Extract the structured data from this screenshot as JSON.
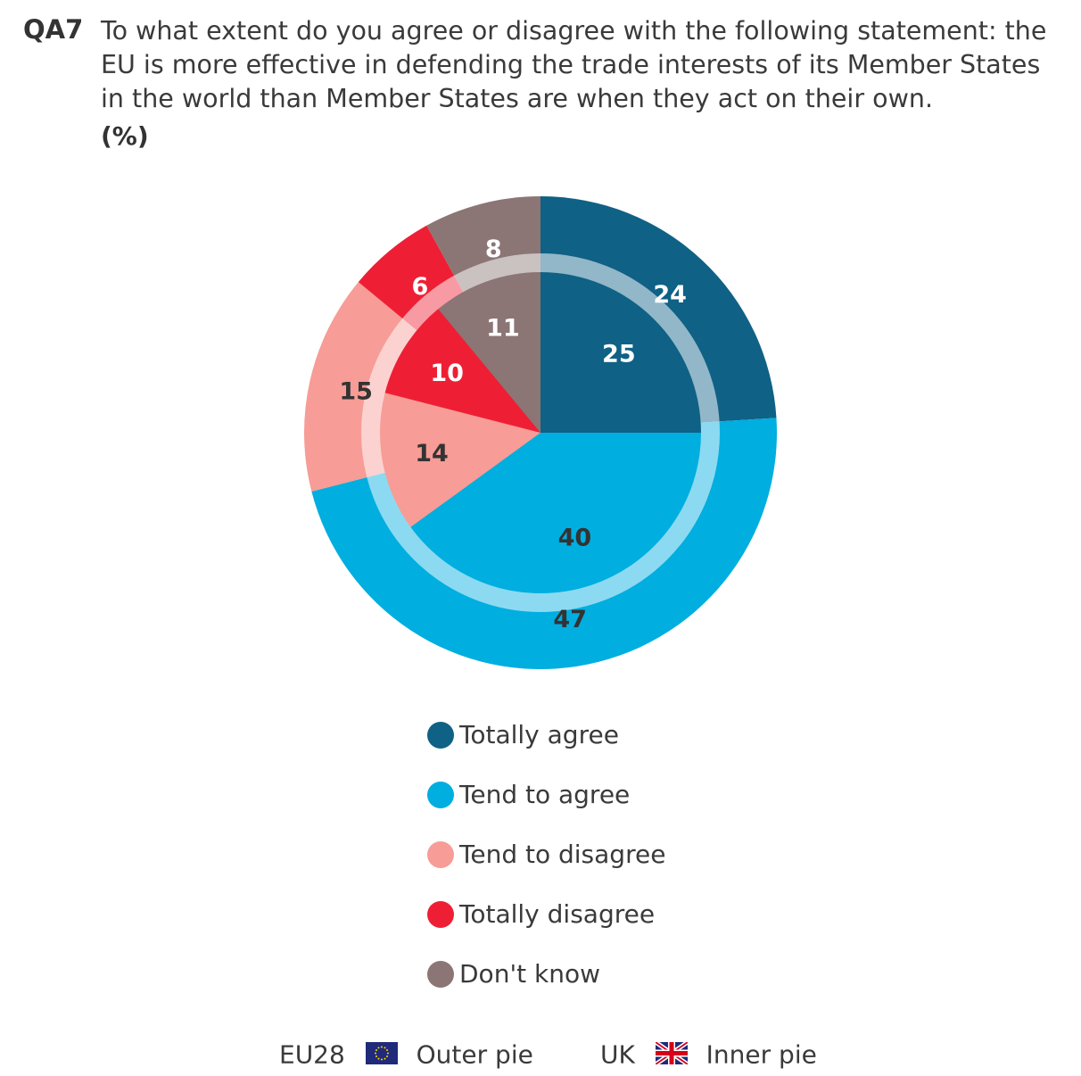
{
  "header": {
    "question_id": "QA7",
    "question_text": "To what extent do you agree or disagree with the following statement: the EU is more effective in defending the trade interests of its Member States in the world than Member States are when they act on their own.",
    "unit": "(%)"
  },
  "chart_data": {
    "type": "pie",
    "categories": [
      "Totally agree",
      "Tend to agree",
      "Tend to disagree",
      "Totally disagree",
      "Don't know"
    ],
    "colors": [
      "#0f6185",
      "#00aee0",
      "#f79c96",
      "#ee1f34",
      "#8b7675"
    ],
    "label_colors": [
      "#ffffff",
      "#333333",
      "#333333",
      "#ffffff",
      "#ffffff"
    ],
    "series": [
      {
        "name": "EU28",
        "ring": "outer",
        "values": [
          24,
          47,
          15,
          6,
          8
        ]
      },
      {
        "name": "UK",
        "ring": "inner",
        "values": [
          25,
          40,
          14,
          10,
          11
        ]
      }
    ]
  },
  "legend": {
    "items": [
      {
        "label": "Totally agree",
        "color": "#0f6185"
      },
      {
        "label": "Tend to agree",
        "color": "#00aee0"
      },
      {
        "label": "Tend to disagree",
        "color": "#f79c96"
      },
      {
        "label": "Totally disagree",
        "color": "#ee1f34"
      },
      {
        "label": "Don't know",
        "color": "#8b7675"
      }
    ]
  },
  "footer": {
    "outer_label": "EU28",
    "outer_desc": "Outer pie",
    "outer_flag_icon": "eu-flag-icon",
    "inner_label": "UK",
    "inner_desc": "Inner pie",
    "inner_flag_icon": "uk-flag-icon"
  }
}
